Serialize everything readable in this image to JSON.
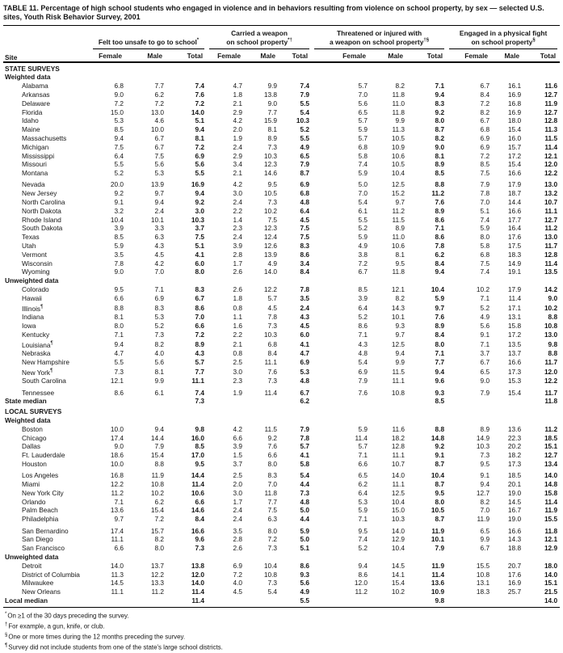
{
  "title": "TABLE 11. Percentage of high school students who engaged in violence and in behaviors resulting from violence on school property, by sex — selected U.S. sites, Youth Risk Behavior Survey, 2001",
  "columns": {
    "site": "Site",
    "sub": [
      "Female",
      "Male",
      "Total"
    ],
    "groups": [
      {
        "line1": "Felt too unsafe to go to school",
        "line2": "",
        "marker": "*"
      },
      {
        "line1": "Carried a weapon",
        "line2": "on school property",
        "marker": "*†"
      },
      {
        "line1": "Threatened or injured with",
        "line2": "a weapon on school property",
        "marker": "†§"
      },
      {
        "line1": "Engaged in a physical fight",
        "line2": "on school property",
        "marker": "§"
      }
    ]
  },
  "rows": [
    {
      "type": "section",
      "site": "STATE SURVEYS"
    },
    {
      "type": "subsection",
      "site": "Weighted data"
    },
    {
      "type": "data",
      "site": "Alabama",
      "values": [
        "6.8",
        "7.7",
        "7.4",
        "4.7",
        "9.9",
        "7.4",
        "5.7",
        "8.2",
        "7.1",
        "6.7",
        "16.1",
        "11.6"
      ]
    },
    {
      "type": "data",
      "site": "Arkansas",
      "values": [
        "9.0",
        "6.2",
        "7.6",
        "1.8",
        "13.8",
        "7.9",
        "7.0",
        "11.8",
        "9.4",
        "8.4",
        "16.9",
        "12.7"
      ]
    },
    {
      "type": "data",
      "site": "Delaware",
      "values": [
        "7.2",
        "7.2",
        "7.2",
        "2.1",
        "9.0",
        "5.5",
        "5.6",
        "11.0",
        "8.3",
        "7.2",
        "16.8",
        "11.9"
      ]
    },
    {
      "type": "data",
      "site": "Florida",
      "values": [
        "15.0",
        "13.0",
        "14.0",
        "2.9",
        "7.7",
        "5.4",
        "6.5",
        "11.8",
        "9.2",
        "8.2",
        "16.9",
        "12.7"
      ]
    },
    {
      "type": "data",
      "site": "Idaho",
      "values": [
        "5.3",
        "4.6",
        "5.1",
        "4.2",
        "15.9",
        "10.3",
        "5.7",
        "9.9",
        "8.0",
        "6.7",
        "18.0",
        "12.8"
      ]
    },
    {
      "type": "data",
      "site": "Maine",
      "values": [
        "8.5",
        "10.0",
        "9.4",
        "2.0",
        "8.1",
        "5.2",
        "5.9",
        "11.3",
        "8.7",
        "6.8",
        "15.4",
        "11.3"
      ]
    },
    {
      "type": "data",
      "site": "Massachusetts",
      "values": [
        "9.4",
        "6.7",
        "8.1",
        "1.9",
        "8.9",
        "5.5",
        "5.7",
        "10.5",
        "8.2",
        "6.9",
        "16.0",
        "11.5"
      ]
    },
    {
      "type": "data",
      "site": "Michigan",
      "values": [
        "7.5",
        "6.7",
        "7.2",
        "2.4",
        "7.3",
        "4.9",
        "6.8",
        "10.9",
        "9.0",
        "6.9",
        "15.7",
        "11.4"
      ]
    },
    {
      "type": "data",
      "site": "Mississippi",
      "values": [
        "6.4",
        "7.5",
        "6.9",
        "2.9",
        "10.3",
        "6.5",
        "5.8",
        "10.6",
        "8.1",
        "7.2",
        "17.2",
        "12.1"
      ]
    },
    {
      "type": "data",
      "site": "Missouri",
      "values": [
        "5.5",
        "5.6",
        "5.6",
        "3.4",
        "12.3",
        "7.9",
        "7.4",
        "10.5",
        "8.9",
        "8.5",
        "15.4",
        "12.0"
      ]
    },
    {
      "type": "data",
      "site": "Montana",
      "values": [
        "5.2",
        "5.3",
        "5.5",
        "2.1",
        "14.6",
        "8.7",
        "5.9",
        "10.4",
        "8.5",
        "7.5",
        "16.6",
        "12.2"
      ]
    },
    {
      "type": "data",
      "site": "Nevada",
      "gap": true,
      "values": [
        "20.0",
        "13.9",
        "16.9",
        "4.2",
        "9.5",
        "6.9",
        "5.0",
        "12.5",
        "8.8",
        "7.9",
        "17.9",
        "13.0"
      ]
    },
    {
      "type": "data",
      "site": "New Jersey",
      "values": [
        "9.2",
        "9.7",
        "9.4",
        "3.0",
        "10.5",
        "6.8",
        "7.0",
        "15.2",
        "11.2",
        "7.8",
        "18.7",
        "13.2"
      ]
    },
    {
      "type": "data",
      "site": "North Carolina",
      "values": [
        "9.1",
        "9.4",
        "9.2",
        "2.4",
        "7.3",
        "4.8",
        "5.4",
        "9.7",
        "7.6",
        "7.0",
        "14.4",
        "10.7"
      ]
    },
    {
      "type": "data",
      "site": "North Dakota",
      "values": [
        "3.2",
        "2.4",
        "3.0",
        "2.2",
        "10.2",
        "6.4",
        "6.1",
        "11.2",
        "8.9",
        "5.1",
        "16.6",
        "11.1"
      ]
    },
    {
      "type": "data",
      "site": "Rhode Island",
      "values": [
        "10.4",
        "10.1",
        "10.3",
        "1.4",
        "7.5",
        "4.5",
        "5.5",
        "11.5",
        "8.6",
        "7.4",
        "17.7",
        "12.7"
      ]
    },
    {
      "type": "data",
      "site": "South Dakota",
      "values": [
        "3.9",
        "3.3",
        "3.7",
        "2.3",
        "12.3",
        "7.5",
        "5.2",
        "8.9",
        "7.1",
        "5.9",
        "16.4",
        "11.2"
      ]
    },
    {
      "type": "data",
      "site": "Texas",
      "values": [
        "8.5",
        "6.3",
        "7.5",
        "2.4",
        "12.4",
        "7.5",
        "5.9",
        "11.0",
        "8.6",
        "8.0",
        "17.6",
        "13.0"
      ]
    },
    {
      "type": "data",
      "site": "Utah",
      "values": [
        "5.9",
        "4.3",
        "5.1",
        "3.9",
        "12.6",
        "8.3",
        "4.9",
        "10.6",
        "7.8",
        "5.8",
        "17.5",
        "11.7"
      ]
    },
    {
      "type": "data",
      "site": "Vermont",
      "values": [
        "3.5",
        "4.5",
        "4.1",
        "2.8",
        "13.9",
        "8.6",
        "3.8",
        "8.1",
        "6.2",
        "6.8",
        "18.3",
        "12.8"
      ]
    },
    {
      "type": "data",
      "site": "Wisconsin",
      "values": [
        "7.8",
        "4.2",
        "6.0",
        "1.7",
        "4.9",
        "3.4",
        "7.2",
        "9.5",
        "8.4",
        "7.5",
        "14.9",
        "11.4"
      ]
    },
    {
      "type": "data",
      "site": "Wyoming",
      "values": [
        "9.0",
        "7.0",
        "8.0",
        "2.6",
        "14.0",
        "8.4",
        "6.7",
        "11.8",
        "9.4",
        "7.4",
        "19.1",
        "13.5"
      ]
    },
    {
      "type": "subsection",
      "site": "Unweighted data"
    },
    {
      "type": "data",
      "site": "Colorado",
      "values": [
        "9.5",
        "7.1",
        "8.3",
        "2.6",
        "12.2",
        "7.8",
        "8.5",
        "12.1",
        "10.4",
        "10.2",
        "17.9",
        "14.2"
      ]
    },
    {
      "type": "data",
      "site": "Hawaii",
      "values": [
        "6.6",
        "6.9",
        "6.7",
        "1.8",
        "5.7",
        "3.5",
        "3.9",
        "8.2",
        "5.9",
        "7.1",
        "11.4",
        "9.0"
      ]
    },
    {
      "type": "data",
      "site": "Illinois",
      "marker": "¶",
      "values": [
        "8.8",
        "8.3",
        "8.6",
        "0.8",
        "4.5",
        "2.4",
        "6.4",
        "14.3",
        "9.7",
        "5.2",
        "17.1",
        "10.2"
      ]
    },
    {
      "type": "data",
      "site": "Indiana",
      "values": [
        "8.1",
        "5.3",
        "7.0",
        "1.1",
        "7.8",
        "4.3",
        "5.2",
        "10.1",
        "7.6",
        "4.9",
        "13.1",
        "8.8"
      ]
    },
    {
      "type": "data",
      "site": "Iowa",
      "values": [
        "8.0",
        "5.2",
        "6.6",
        "1.6",
        "7.3",
        "4.5",
        "8.6",
        "9.3",
        "8.9",
        "5.6",
        "15.8",
        "10.8"
      ]
    },
    {
      "type": "data",
      "site": "Kentucky",
      "values": [
        "7.1",
        "7.3",
        "7.2",
        "2.2",
        "10.3",
        "6.0",
        "7.1",
        "9.7",
        "8.4",
        "9.1",
        "17.2",
        "13.0"
      ]
    },
    {
      "type": "data",
      "site": "Louisiana",
      "marker": "¶",
      "values": [
        "9.4",
        "8.2",
        "8.9",
        "2.1",
        "6.8",
        "4.1",
        "4.3",
        "12.5",
        "8.0",
        "7.1",
        "13.5",
        "9.8"
      ]
    },
    {
      "type": "data",
      "site": "Nebraska",
      "values": [
        "4.7",
        "4.0",
        "4.3",
        "0.8",
        "8.4",
        "4.7",
        "4.8",
        "9.4",
        "7.1",
        "3.7",
        "13.7",
        "8.8"
      ]
    },
    {
      "type": "data",
      "site": "New Hampshire",
      "values": [
        "5.5",
        "5.6",
        "5.7",
        "2.5",
        "11.1",
        "6.9",
        "5.4",
        "9.9",
        "7.7",
        "6.7",
        "16.6",
        "11.7"
      ]
    },
    {
      "type": "data",
      "site": "New York",
      "marker": "¶",
      "values": [
        "7.3",
        "8.1",
        "7.7",
        "3.0",
        "7.6",
        "5.3",
        "6.9",
        "11.5",
        "9.4",
        "6.5",
        "17.3",
        "12.0"
      ]
    },
    {
      "type": "data",
      "site": "South Carolina",
      "values": [
        "12.1",
        "9.9",
        "11.1",
        "2.3",
        "7.3",
        "4.8",
        "7.9",
        "11.1",
        "9.6",
        "9.0",
        "15.3",
        "12.2"
      ]
    },
    {
      "type": "data",
      "site": "Tennessee",
      "gap": true,
      "values": [
        "8.6",
        "6.1",
        "7.4",
        "1.9",
        "11.4",
        "6.7",
        "7.6",
        "10.8",
        "9.3",
        "7.9",
        "15.4",
        "11.7"
      ]
    },
    {
      "type": "median",
      "site": "State median",
      "values": [
        "",
        "",
        "7.3",
        "",
        "",
        "6.2",
        "",
        "",
        "8.5",
        "",
        "",
        "11.8"
      ]
    },
    {
      "type": "section",
      "site": "LOCAL SURVEYS"
    },
    {
      "type": "subsection",
      "site": "Weighted data"
    },
    {
      "type": "data",
      "site": "Boston",
      "values": [
        "10.0",
        "9.4",
        "9.8",
        "4.2",
        "11.5",
        "7.9",
        "5.9",
        "11.6",
        "8.8",
        "8.9",
        "13.6",
        "11.2"
      ]
    },
    {
      "type": "data",
      "site": "Chicago",
      "values": [
        "17.4",
        "14.4",
        "16.0",
        "6.6",
        "9.2",
        "7.8",
        "11.4",
        "18.2",
        "14.8",
        "14.9",
        "22.3",
        "18.5"
      ]
    },
    {
      "type": "data",
      "site": "Dallas",
      "values": [
        "9.0",
        "7.9",
        "8.5",
        "3.9",
        "7.6",
        "5.7",
        "5.7",
        "12.8",
        "9.2",
        "10.3",
        "20.2",
        "15.1"
      ]
    },
    {
      "type": "data",
      "site": "Ft. Lauderdale",
      "values": [
        "18.6",
        "15.4",
        "17.0",
        "1.5",
        "6.6",
        "4.1",
        "7.1",
        "11.1",
        "9.1",
        "7.3",
        "18.2",
        "12.7"
      ]
    },
    {
      "type": "data",
      "site": "Houston",
      "values": [
        "10.0",
        "8.8",
        "9.5",
        "3.7",
        "8.0",
        "5.8",
        "6.6",
        "10.7",
        "8.7",
        "9.5",
        "17.3",
        "13.4"
      ]
    },
    {
      "type": "data",
      "site": "Los Angeles",
      "gap": true,
      "values": [
        "16.8",
        "11.9",
        "14.4",
        "2.5",
        "8.3",
        "5.4",
        "6.5",
        "14.0",
        "10.4",
        "9.1",
        "18.5",
        "14.0"
      ]
    },
    {
      "type": "data",
      "site": "Miami",
      "values": [
        "12.2",
        "10.8",
        "11.4",
        "2.0",
        "7.0",
        "4.4",
        "6.2",
        "11.1",
        "8.7",
        "9.4",
        "20.1",
        "14.8"
      ]
    },
    {
      "type": "data",
      "site": "New York City",
      "values": [
        "11.2",
        "10.2",
        "10.6",
        "3.0",
        "11.8",
        "7.3",
        "6.4",
        "12.5",
        "9.5",
        "12.7",
        "19.0",
        "15.8"
      ]
    },
    {
      "type": "data",
      "site": "Orlando",
      "values": [
        "7.1",
        "6.2",
        "6.6",
        "1.7",
        "7.7",
        "4.8",
        "5.3",
        "10.4",
        "8.0",
        "8.2",
        "14.5",
        "11.4"
      ]
    },
    {
      "type": "data",
      "site": "Palm Beach",
      "values": [
        "13.6",
        "15.4",
        "14.6",
        "2.4",
        "7.5",
        "5.0",
        "5.9",
        "15.0",
        "10.5",
        "7.0",
        "16.7",
        "11.9"
      ]
    },
    {
      "type": "data",
      "site": "Philadelphia",
      "values": [
        "9.7",
        "7.2",
        "8.4",
        "2.4",
        "6.3",
        "4.4",
        "7.1",
        "10.3",
        "8.7",
        "11.9",
        "19.0",
        "15.5"
      ]
    },
    {
      "type": "data",
      "site": "San Bernardino",
      "gap": true,
      "values": [
        "17.4",
        "15.7",
        "16.6",
        "3.5",
        "8.0",
        "5.9",
        "9.5",
        "14.0",
        "11.9",
        "6.5",
        "16.6",
        "11.8"
      ]
    },
    {
      "type": "data",
      "site": "San Diego",
      "values": [
        "11.1",
        "8.2",
        "9.6",
        "2.8",
        "7.2",
        "5.0",
        "7.4",
        "12.9",
        "10.1",
        "9.9",
        "14.3",
        "12.1"
      ]
    },
    {
      "type": "data",
      "site": "San Francisco",
      "values": [
        "6.6",
        "8.0",
        "7.3",
        "2.6",
        "7.3",
        "5.1",
        "5.2",
        "10.4",
        "7.9",
        "6.7",
        "18.8",
        "12.9"
      ]
    },
    {
      "type": "subsection",
      "site": "Unweighted data"
    },
    {
      "type": "data",
      "site": "Detroit",
      "values": [
        "14.0",
        "13.7",
        "13.8",
        "6.9",
        "10.4",
        "8.6",
        "9.4",
        "14.5",
        "11.9",
        "15.5",
        "20.7",
        "18.0"
      ]
    },
    {
      "type": "data",
      "site": "District of Columbia",
      "values": [
        "11.3",
        "12.2",
        "12.0",
        "7.2",
        "10.8",
        "9.3",
        "8.6",
        "14.1",
        "11.4",
        "10.8",
        "17.6",
        "14.0"
      ]
    },
    {
      "type": "data",
      "site": "Milwaukee",
      "values": [
        "14.5",
        "13.3",
        "14.0",
        "4.0",
        "7.3",
        "5.6",
        "12.0",
        "15.4",
        "13.6",
        "13.1",
        "16.9",
        "15.1"
      ]
    },
    {
      "type": "data",
      "site": "New Orleans",
      "values": [
        "11.1",
        "11.2",
        "11.4",
        "4.5",
        "5.4",
        "4.9",
        "11.2",
        "10.2",
        "10.9",
        "18.3",
        "25.7",
        "21.5"
      ]
    },
    {
      "type": "median",
      "site": "Local median",
      "values": [
        "",
        "",
        "11.4",
        "",
        "",
        "5.5",
        "",
        "",
        "9.8",
        "",
        "",
        "14.0"
      ]
    }
  ],
  "footnotes": [
    {
      "marker": "*",
      "text": "On ≥1 of the 30 days preceding the survey."
    },
    {
      "marker": "†",
      "text": "For example, a gun, knife, or club."
    },
    {
      "marker": "§",
      "text": "One or more times during the 12 months preceding the survey."
    },
    {
      "marker": "¶",
      "text": "Survey did not include students from one of the state's large school districts."
    }
  ]
}
